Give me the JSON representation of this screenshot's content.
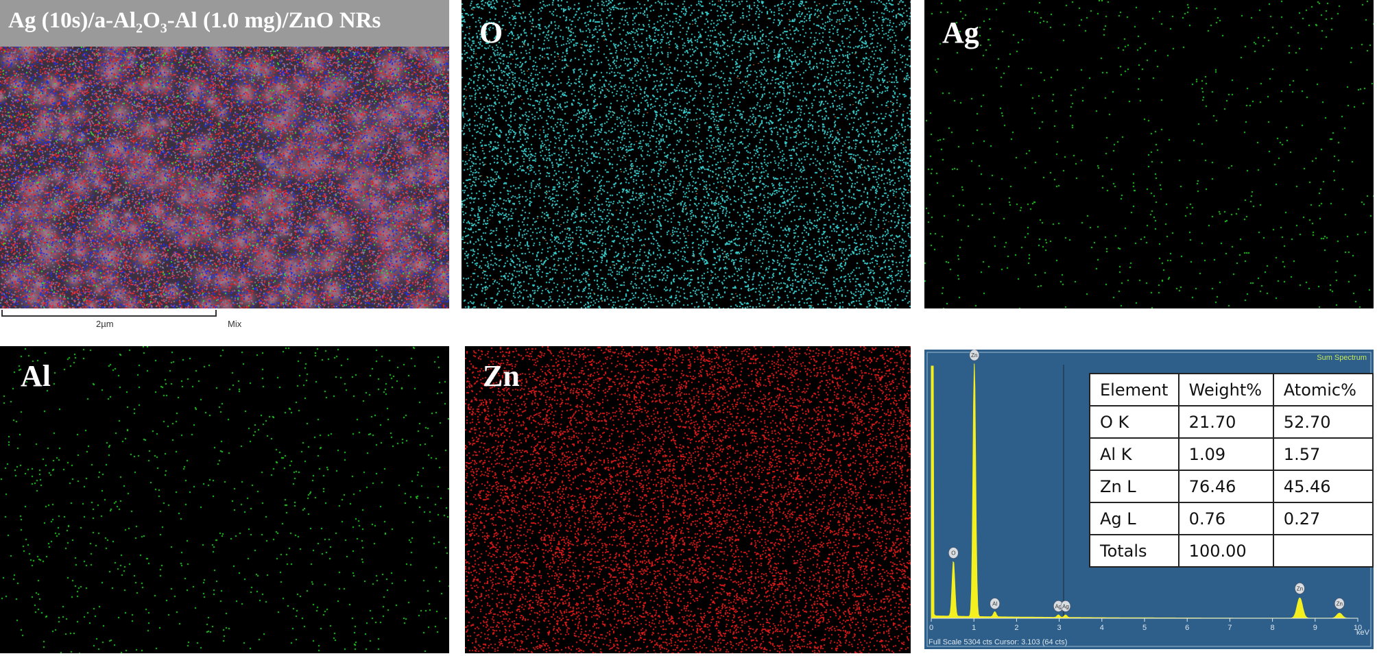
{
  "panels": {
    "mix": {
      "title_parts": [
        "Ag (10s)/a-Al",
        "2",
        "O",
        "3",
        "-Al (1.0 mg)/ZnO NRs"
      ],
      "scale_label": "2µm",
      "mode_label": "Mix"
    },
    "o": {
      "label": "O",
      "dot_color": "#3ad2d2",
      "accent_color": "#e07a2a"
    },
    "ag": {
      "label": "Ag",
      "dot_color": "#22d022"
    },
    "al": {
      "label": "Al",
      "dot_color": "#22d022"
    },
    "zn": {
      "label": "Zn",
      "dot_color": "#e01a1a"
    }
  },
  "spectrum": {
    "title": "Sum Spectrum",
    "footer": "Full Scale 5304 cts Cursor: 3.103 (64 cts)",
    "unit": "keV",
    "x_ticks": [
      "0",
      "1",
      "2",
      "3",
      "4",
      "5",
      "6",
      "7",
      "8",
      "9",
      "10"
    ],
    "peak_labels": [
      "Zn",
      "O",
      "Al",
      "Ag",
      "Ag",
      "Zn",
      "Zn"
    ],
    "peaks_kev": [
      {
        "label": "Zn",
        "kev": 1.01,
        "height": 1.0
      },
      {
        "label": "O",
        "kev": 0.52,
        "height": 0.22
      },
      {
        "label": "Al",
        "kev": 1.49,
        "height": 0.02
      },
      {
        "label": "Ag",
        "kev": 2.98,
        "height": 0.01
      },
      {
        "label": "Ag",
        "kev": 3.15,
        "height": 0.01
      },
      {
        "label": "Zn",
        "kev": 8.64,
        "height": 0.08
      },
      {
        "label": "Zn",
        "kev": 9.57,
        "height": 0.02
      }
    ],
    "table": {
      "headers": [
        "Element",
        "Weight%",
        "Atomic%"
      ],
      "rows": [
        [
          "O K",
          "21.70",
          "52.70"
        ],
        [
          "Al K",
          "1.09",
          "1.57"
        ],
        [
          "Zn L",
          "76.46",
          "45.46"
        ],
        [
          "Ag L",
          "0.76",
          "0.27"
        ],
        [
          "Totals",
          "100.00",
          ""
        ]
      ]
    }
  }
}
